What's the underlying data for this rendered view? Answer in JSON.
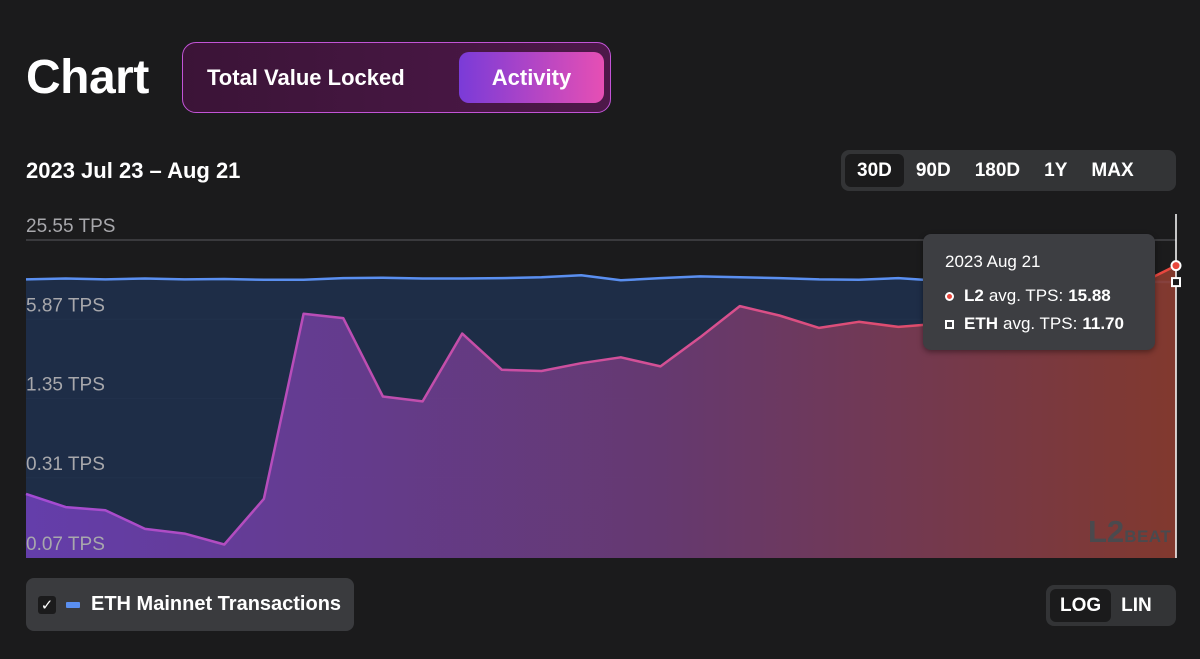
{
  "header": {
    "title": "Chart"
  },
  "metric_switch": {
    "tvl_label": "Total Value Locked",
    "activity_label": "Activity",
    "selected": "Activity"
  },
  "range_label": "2023 Jul 23 – Aug 21",
  "periods": [
    {
      "label": "30D",
      "active": true
    },
    {
      "label": "90D",
      "active": false
    },
    {
      "label": "180D",
      "active": false
    },
    {
      "label": "1Y",
      "active": false
    },
    {
      "label": "MAX",
      "active": false
    }
  ],
  "tooltip": {
    "date": "2023 Aug 21",
    "l2_label": "L2",
    "l2_suffix": "avg. TPS:",
    "l2_value": "15.88",
    "eth_label": "ETH",
    "eth_suffix": "avg. TPS:",
    "eth_value": "11.70"
  },
  "legend": {
    "label": "ETH Mainnet Transactions",
    "checked": true
  },
  "scale": [
    {
      "label": "LOG",
      "active": true
    },
    {
      "label": "LIN",
      "active": false
    }
  ],
  "watermark": {
    "main": "L2",
    "sub": "BEAT"
  },
  "colors": {
    "l2_line": "#c85ac4",
    "l2_line_end": "#e8473d",
    "eth_line": "#5a8ff0",
    "accent": "#c254d6"
  },
  "chart_data": {
    "type": "area",
    "scale": "log",
    "y_ticks": [
      {
        "value": 25.55,
        "label": "25.55 TPS"
      },
      {
        "value": 5.87,
        "label": "5.87 TPS"
      },
      {
        "value": 1.35,
        "label": "1.35 TPS"
      },
      {
        "value": 0.31,
        "label": "0.31 TPS"
      },
      {
        "value": 0.07,
        "label": "0.07 TPS"
      }
    ],
    "x": [
      "2023-07-23",
      "2023-07-24",
      "2023-07-25",
      "2023-07-26",
      "2023-07-27",
      "2023-07-28",
      "2023-07-29",
      "2023-07-30",
      "2023-07-31",
      "2023-08-01",
      "2023-08-02",
      "2023-08-03",
      "2023-08-04",
      "2023-08-05",
      "2023-08-06",
      "2023-08-07",
      "2023-08-08",
      "2023-08-09",
      "2023-08-10",
      "2023-08-11",
      "2023-08-12",
      "2023-08-13",
      "2023-08-14",
      "2023-08-15",
      "2023-08-16",
      "2023-08-17",
      "2023-08-18",
      "2023-08-19",
      "2023-08-20",
      "2023-08-21"
    ],
    "series": [
      {
        "name": "L2",
        "values": [
          0.23,
          0.18,
          0.17,
          0.12,
          0.11,
          0.09,
          0.21,
          6.5,
          6.0,
          1.4,
          1.28,
          4.5,
          2.3,
          2.25,
          2.6,
          2.9,
          2.45,
          4.2,
          7.5,
          6.3,
          5.0,
          5.6,
          5.1,
          5.4,
          5.9,
          5.6,
          9.8,
          10.6,
          11.0,
          15.88
        ]
      },
      {
        "name": "ETH",
        "values": [
          12.3,
          12.5,
          12.3,
          12.5,
          12.3,
          12.4,
          12.2,
          12.2,
          12.6,
          12.7,
          12.5,
          12.5,
          12.6,
          12.8,
          13.3,
          12.1,
          12.6,
          13.0,
          12.8,
          12.6,
          12.3,
          12.2,
          12.6,
          12.0,
          11.4,
          12.4,
          12.7,
          12.8,
          11.8,
          11.7
        ]
      }
    ],
    "ylim": [
      0.07,
      25.55
    ],
    "grid": true,
    "legend": "bottom-left"
  }
}
